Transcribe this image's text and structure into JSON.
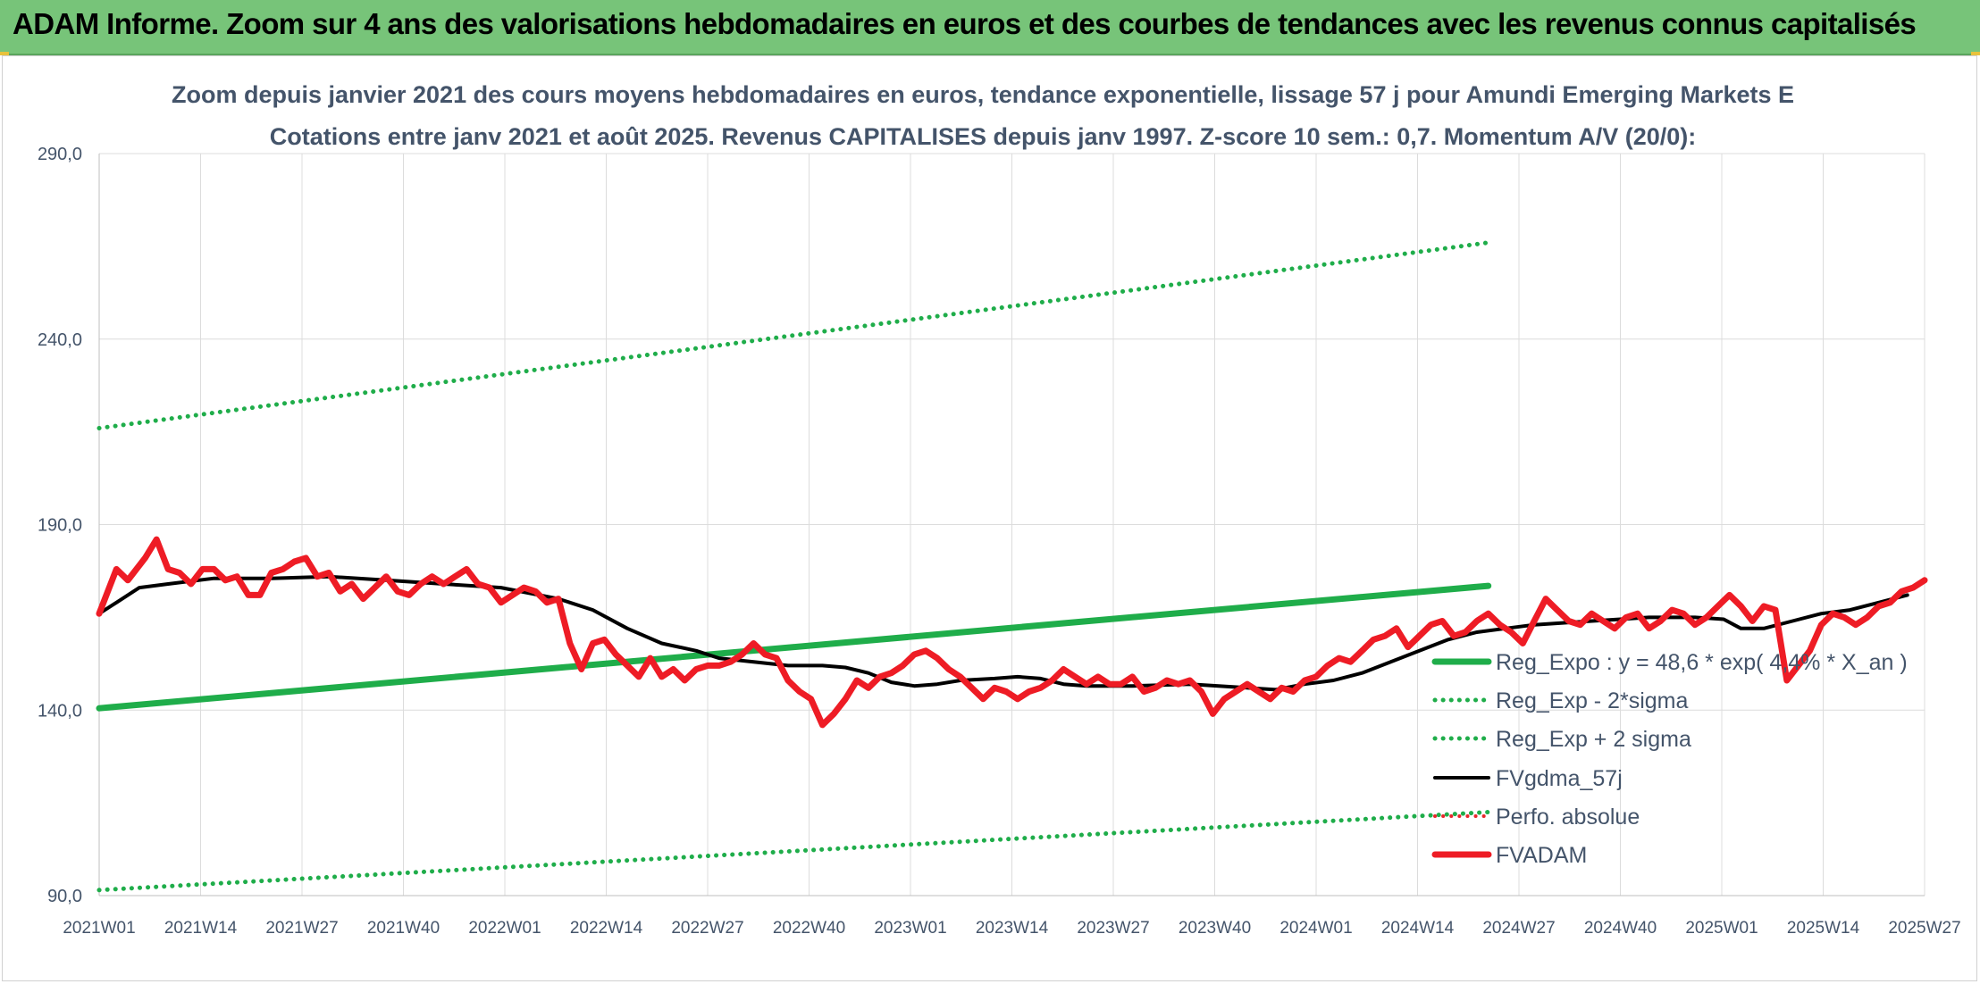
{
  "banner": {
    "text": "ADAM Informe. Zoom sur 4 ans des valorisations hebdomadaires en euros et des courbes de tendances avec les revenus connus capitalisés"
  },
  "chart_data": {
    "type": "line",
    "title_line1": "Zoom depuis janvier 2021 des cours moyens hebdomadaires en euros, tendance exponentielle, lissage 57 j pour Amundi Emerging Markets E",
    "title_line2": "Cotations entre janv 2021 et août 2025. Revenus CAPITALISES depuis janv 1997. Z-score 10 sem.: 0,7. Momentum A/V (20/0):",
    "ylim": [
      90,
      290
    ],
    "ytick_labels": [
      "90,0",
      "140,0",
      "190,0",
      "240,0",
      "290,0"
    ],
    "ytick_values": [
      90,
      140,
      190,
      240,
      290
    ],
    "x_categories": [
      "2021W01",
      "2021W14",
      "2021W27",
      "2021W40",
      "2022W01",
      "2022W14",
      "2022W27",
      "2022W40",
      "2023W01",
      "2023W14",
      "2023W27",
      "2023W40",
      "2024W01",
      "2024W14",
      "2024W27",
      "2024W40",
      "2025W01",
      "2025W14",
      "2025W27"
    ],
    "n_weeks": 243,
    "grid": true,
    "legend_position": "right-inside",
    "series": [
      {
        "name": "Reg_Expo : y = 48,6 * exp( 4,4% *  X_an )",
        "style": "solid",
        "color": "#1fad4a",
        "width": 7,
        "points": [
          [
            0,
            140.5
          ],
          [
            242,
            173.5
          ]
        ]
      },
      {
        "name": "Reg_Exp - 2*sigma",
        "style": "dotted",
        "color": "#1fad4a",
        "width": 5,
        "points": [
          [
            0,
            91.5
          ],
          [
            242,
            112.5
          ]
        ]
      },
      {
        "name": "Reg_Exp + 2 sigma",
        "style": "dotted",
        "color": "#1fad4a",
        "width": 5,
        "points": [
          [
            0,
            216
          ],
          [
            242,
            266
          ]
        ]
      },
      {
        "name": "FVgdma_57j",
        "style": "solid",
        "color": "#000000",
        "width": 4,
        "points": [
          [
            0,
            166
          ],
          [
            3,
            169
          ],
          [
            7,
            173
          ],
          [
            12,
            174
          ],
          [
            20,
            175.5
          ],
          [
            30,
            175.5
          ],
          [
            40,
            176
          ],
          [
            50,
            175
          ],
          [
            60,
            174
          ],
          [
            70,
            173
          ],
          [
            80,
            170
          ],
          [
            86,
            167
          ],
          [
            92,
            162
          ],
          [
            98,
            158
          ],
          [
            104,
            156
          ],
          [
            108,
            154
          ],
          [
            114,
            153
          ],
          [
            120,
            152
          ],
          [
            126,
            152
          ],
          [
            130,
            151.5
          ],
          [
            134,
            150
          ],
          [
            138,
            147.5
          ],
          [
            142,
            146.5
          ],
          [
            146,
            147
          ],
          [
            150,
            148
          ],
          [
            156,
            148.5
          ],
          [
            160,
            149
          ],
          [
            164,
            148.5
          ],
          [
            168,
            147
          ],
          [
            172,
            146.5
          ],
          [
            180,
            146.5
          ],
          [
            190,
            147
          ],
          [
            200,
            146
          ],
          [
            205,
            145.5
          ],
          [
            210,
            147
          ],
          [
            215,
            148
          ],
          [
            220,
            150
          ],
          [
            225,
            153
          ],
          [
            230,
            156
          ],
          [
            235,
            159
          ],
          [
            240,
            161
          ],
          [
            245,
            162
          ],
          [
            250,
            163
          ],
          [
            260,
            164
          ],
          [
            265,
            164.5
          ],
          [
            270,
            165
          ],
          [
            278,
            165
          ],
          [
            283,
            164.5
          ],
          [
            286,
            162
          ],
          [
            290,
            162
          ],
          [
            295,
            164
          ],
          [
            300,
            166
          ],
          [
            305,
            167
          ],
          [
            310,
            169
          ],
          [
            315,
            171
          ]
        ]
      },
      {
        "name": "Perfo. absolue",
        "style": "dotted",
        "color": "#e8262a",
        "width": 4,
        "points": []
      },
      {
        "name": "FVADAM",
        "style": "solid",
        "color": "#ee1c25",
        "width": 7,
        "points": [
          [
            0,
            166
          ],
          [
            3,
            178
          ],
          [
            5,
            175
          ],
          [
            8,
            181
          ],
          [
            10,
            186
          ],
          [
            12,
            178
          ],
          [
            14,
            177
          ],
          [
            16,
            174
          ],
          [
            18,
            178
          ],
          [
            20,
            178
          ],
          [
            22,
            175
          ],
          [
            24,
            176
          ],
          [
            26,
            171
          ],
          [
            28,
            171
          ],
          [
            30,
            177
          ],
          [
            32,
            178
          ],
          [
            34,
            180
          ],
          [
            36,
            181
          ],
          [
            38,
            176
          ],
          [
            40,
            177
          ],
          [
            42,
            172
          ],
          [
            44,
            174
          ],
          [
            46,
            170
          ],
          [
            48,
            173
          ],
          [
            50,
            176
          ],
          [
            52,
            172
          ],
          [
            54,
            171
          ],
          [
            56,
            174
          ],
          [
            58,
            176
          ],
          [
            60,
            174
          ],
          [
            62,
            176
          ],
          [
            64,
            178
          ],
          [
            66,
            174
          ],
          [
            68,
            173
          ],
          [
            70,
            169
          ],
          [
            72,
            171
          ],
          [
            74,
            173
          ],
          [
            76,
            172
          ],
          [
            78,
            169
          ],
          [
            80,
            170
          ],
          [
            82,
            158
          ],
          [
            84,
            151
          ],
          [
            86,
            158
          ],
          [
            88,
            159
          ],
          [
            90,
            155
          ],
          [
            92,
            152
          ],
          [
            94,
            149
          ],
          [
            96,
            154
          ],
          [
            98,
            149
          ],
          [
            100,
            151
          ],
          [
            102,
            148
          ],
          [
            104,
            151
          ],
          [
            106,
            152
          ],
          [
            108,
            152
          ],
          [
            110,
            153
          ],
          [
            112,
            155
          ],
          [
            114,
            158
          ],
          [
            116,
            155
          ],
          [
            118,
            154
          ],
          [
            120,
            148
          ],
          [
            122,
            145
          ],
          [
            124,
            143
          ],
          [
            126,
            136
          ],
          [
            128,
            139
          ],
          [
            130,
            143
          ],
          [
            132,
            148
          ],
          [
            134,
            146
          ],
          [
            136,
            149
          ],
          [
            138,
            150
          ],
          [
            140,
            152
          ],
          [
            142,
            155
          ],
          [
            144,
            156
          ],
          [
            146,
            154
          ],
          [
            148,
            151
          ],
          [
            150,
            149
          ],
          [
            152,
            146
          ],
          [
            154,
            143
          ],
          [
            156,
            146
          ],
          [
            158,
            145
          ],
          [
            160,
            143
          ],
          [
            162,
            145
          ],
          [
            164,
            146
          ],
          [
            166,
            148
          ],
          [
            168,
            151
          ],
          [
            170,
            149
          ],
          [
            172,
            147
          ],
          [
            174,
            149
          ],
          [
            176,
            147
          ],
          [
            178,
            147
          ],
          [
            180,
            149
          ],
          [
            182,
            145
          ],
          [
            184,
            146
          ],
          [
            186,
            148
          ],
          [
            188,
            147
          ],
          [
            190,
            148
          ],
          [
            192,
            145
          ],
          [
            194,
            139
          ],
          [
            196,
            143
          ],
          [
            198,
            145
          ],
          [
            200,
            147
          ],
          [
            202,
            145
          ],
          [
            204,
            143
          ],
          [
            206,
            146
          ],
          [
            208,
            145
          ],
          [
            210,
            148
          ],
          [
            212,
            149
          ],
          [
            214,
            152
          ],
          [
            216,
            154
          ],
          [
            218,
            153
          ],
          [
            220,
            156
          ],
          [
            222,
            159
          ],
          [
            224,
            160
          ],
          [
            226,
            162
          ],
          [
            228,
            157
          ],
          [
            230,
            160
          ],
          [
            232,
            163
          ],
          [
            234,
            164
          ],
          [
            236,
            160
          ],
          [
            238,
            161
          ],
          [
            240,
            164
          ],
          [
            242,
            166
          ],
          [
            244,
            163
          ],
          [
            246,
            161
          ],
          [
            248,
            158
          ],
          [
            250,
            164
          ],
          [
            252,
            170
          ],
          [
            254,
            167
          ],
          [
            256,
            164
          ],
          [
            258,
            163
          ],
          [
            260,
            166
          ],
          [
            262,
            164
          ],
          [
            264,
            162
          ],
          [
            266,
            165
          ],
          [
            268,
            166
          ],
          [
            270,
            162
          ],
          [
            272,
            164
          ],
          [
            274,
            167
          ],
          [
            276,
            166
          ],
          [
            278,
            163
          ],
          [
            280,
            165
          ],
          [
            282,
            168
          ],
          [
            284,
            171
          ],
          [
            286,
            168
          ],
          [
            288,
            164
          ],
          [
            290,
            168
          ],
          [
            292,
            167
          ],
          [
            294,
            148
          ],
          [
            296,
            152
          ],
          [
            298,
            156
          ],
          [
            300,
            163
          ],
          [
            302,
            166
          ],
          [
            304,
            165
          ],
          [
            306,
            163
          ],
          [
            308,
            165
          ],
          [
            310,
            168
          ],
          [
            312,
            169
          ],
          [
            314,
            172
          ],
          [
            316,
            173
          ],
          [
            318,
            175
          ]
        ]
      }
    ]
  }
}
